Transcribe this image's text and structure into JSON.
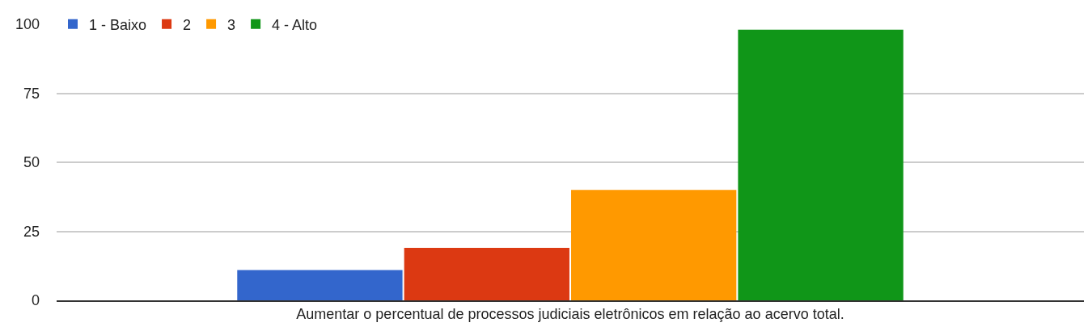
{
  "chart_data": {
    "type": "bar",
    "categories": [
      "Aumentar o percentual de processos judiciais eletrônicos em relação ao acervo total."
    ],
    "series": [
      {
        "name": "1 - Baixo",
        "color": "#3366cc",
        "values": [
          11
        ]
      },
      {
        "name": "2",
        "color": "#dc3912",
        "values": [
          19
        ]
      },
      {
        "name": "3",
        "color": "#ff9900",
        "values": [
          40
        ]
      },
      {
        "name": "4 - Alto",
        "color": "#109618",
        "values": [
          98
        ]
      }
    ],
    "ylim": [
      0,
      100
    ],
    "yticks": [
      0,
      25,
      50,
      75,
      100
    ],
    "grid": "y",
    "legend": "top left"
  }
}
